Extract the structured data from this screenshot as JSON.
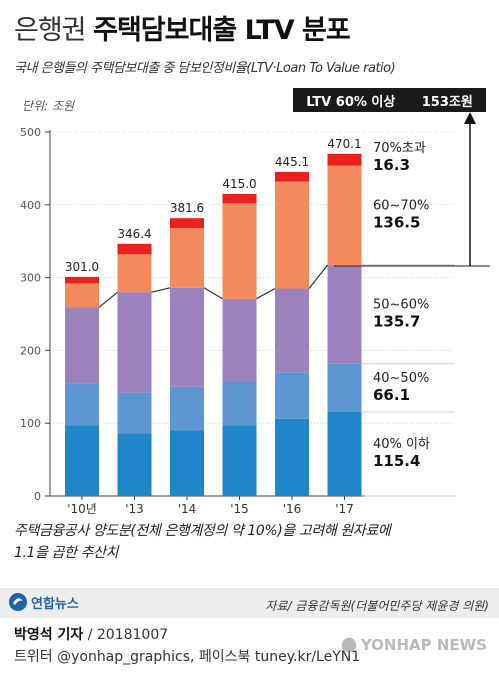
{
  "title": {
    "light": "은행권",
    "bold": "주택담보대출 LTV 분포"
  },
  "subtitle": "국내 은행들의 주택담보대출 중 담보인정비율(LTV·Loan To Value ratio)",
  "unit_label": "단위: 조원",
  "callout": {
    "label": "LTV 60% 이상",
    "value": "153조원"
  },
  "chart_data": {
    "type": "bar",
    "stacked": true,
    "categories": [
      "'10년",
      "'13",
      "'14",
      "'15",
      "'16",
      "'17"
    ],
    "totals": [
      301.0,
      346.4,
      381.6,
      415.0,
      445.1,
      470.1
    ],
    "total_labels": [
      "301.0",
      "346.4",
      "381.6",
      "415.0",
      "445.1",
      "470.1"
    ],
    "series": [
      {
        "name": "40% 이하",
        "color": "#1f86c9",
        "values": [
          97,
          86,
          90,
          97,
          106,
          115.4
        ]
      },
      {
        "name": "40~50%",
        "color": "#5e96d1",
        "values": [
          58,
          56,
          60,
          61,
          64,
          66.1
        ]
      },
      {
        "name": "50~60%",
        "color": "#9c82bd",
        "values": [
          104,
          138,
          136,
          113,
          115,
          135.7
        ]
      },
      {
        "name": "60~70%",
        "color": "#f28a5c",
        "values": [
          33,
          52,
          82,
          131,
          147,
          136.5
        ]
      },
      {
        "name": "70%초과",
        "color": "#e8201e",
        "values": [
          9,
          14.4,
          13.6,
          13,
          13.1,
          16.3
        ]
      }
    ],
    "segment_labels_2017": [
      "115.4",
      "66.1",
      "135.7",
      "136.5",
      "16.3"
    ],
    "ylim": [
      0,
      500
    ],
    "yticks": [
      "0",
      "100",
      "200",
      "300",
      "400",
      "500"
    ]
  },
  "note": "주택금융공사 양도분(전체 은행계정의 약 10%)을 고려해 원자료에\n1.1을 곱한 추산치",
  "source": "자료/ 금융감독원(더불어민주당 제윤경 의원)",
  "logo_text": "연합뉴스",
  "byline": {
    "author": "박영석 기자",
    "date": " / 20181007",
    "social": "트위터 @yonhap_graphics, 페이스북 tuney.kr/LeYN1"
  },
  "watermark": "YONHAP NEWS",
  "colors": {
    "background": "#ffffff",
    "footer_band": "#eceeee",
    "callout_bg": "#1a1a1a",
    "logo_blue": "#1e64a8"
  }
}
